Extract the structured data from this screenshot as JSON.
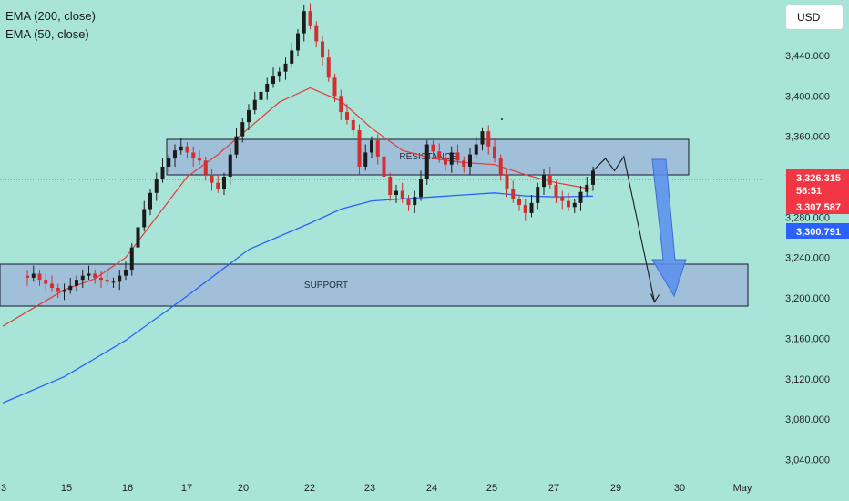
{
  "indicators": {
    "ema200_label": "EMA (200, close)",
    "ema50_label": "EMA (50, close)",
    "ema200_color": "#2962ff",
    "ema50_color": "#e53935"
  },
  "currency_label": "USD",
  "zones": {
    "resistance_label": "RESISTANCE",
    "support_label": "SUPPORT",
    "resistance_range": [
      3336,
      3366
    ],
    "support_range": [
      3199,
      3237
    ],
    "fill_color": "#9fb8d8"
  },
  "price_badges": {
    "last_price": "3,326.315",
    "countdown": "56:51",
    "ema50_value": "3,307.587",
    "ema200_value": "3,300.791"
  },
  "colors": {
    "background": "#a8e4d8",
    "up_candle": "#1b1b1b",
    "down_candle": "#d32f2f",
    "badge_red": "#f23645",
    "badge_blue": "#2962ff",
    "arrow_blue": "#5b8def"
  },
  "chart_data": {
    "type": "candlestick",
    "x_ticks": [
      "3",
      "15",
      "16",
      "17",
      "20",
      "22",
      "23",
      "24",
      "25",
      "27",
      "29",
      "30",
      "May"
    ],
    "y_ticks": [
      "3,440.000",
      "3,400.000",
      "3,360.000",
      "3,320.000",
      "3,280.000",
      "3,240.000",
      "3,200.000",
      "3,160.000",
      "3,120.000",
      "3,080.000",
      "3,040.000"
    ],
    "y_tick_values": [
      3440,
      3400,
      3360,
      3320,
      3280,
      3240,
      3200,
      3160,
      3120,
      3080,
      3040
    ],
    "ylim": [
      3026,
      3495
    ],
    "last_price": 3326.315,
    "close_path": [
      [
        3,
        3222
      ],
      [
        4,
        3220
      ],
      [
        5,
        3224
      ],
      [
        6,
        3218
      ],
      [
        7,
        3214
      ],
      [
        8,
        3210
      ],
      [
        9,
        3206
      ],
      [
        10,
        3208
      ],
      [
        11,
        3212
      ],
      [
        12,
        3218
      ],
      [
        13,
        3222
      ],
      [
        14,
        3224
      ],
      [
        15,
        3220
      ],
      [
        16,
        3218
      ],
      [
        17,
        3216
      ],
      [
        18,
        3216
      ],
      [
        19,
        3222
      ],
      [
        20,
        3228
      ],
      [
        21,
        3250
      ],
      [
        22,
        3270
      ],
      [
        23,
        3288
      ],
      [
        24,
        3304
      ],
      [
        25,
        3318
      ],
      [
        26,
        3330
      ],
      [
        27,
        3338
      ],
      [
        28,
        3346
      ],
      [
        29,
        3350
      ],
      [
        30,
        3344
      ],
      [
        31,
        3338
      ],
      [
        32,
        3336
      ],
      [
        33,
        3322
      ],
      [
        34,
        3314
      ],
      [
        35,
        3308
      ],
      [
        36,
        3320
      ],
      [
        37,
        3342
      ],
      [
        38,
        3360
      ],
      [
        39,
        3374
      ],
      [
        40,
        3386
      ],
      [
        41,
        3396
      ],
      [
        42,
        3404
      ],
      [
        43,
        3412
      ],
      [
        44,
        3420
      ],
      [
        45,
        3424
      ],
      [
        46,
        3432
      ],
      [
        47,
        3445
      ],
      [
        48,
        3462
      ],
      [
        49,
        3484
      ],
      [
        50,
        3470
      ],
      [
        51,
        3454
      ],
      [
        52,
        3438
      ],
      [
        53,
        3418
      ],
      [
        54,
        3400
      ],
      [
        55,
        3384
      ],
      [
        56,
        3376
      ],
      [
        57,
        3366
      ],
      [
        58,
        3330
      ],
      [
        59,
        3344
      ],
      [
        60,
        3356
      ],
      [
        61,
        3340
      ],
      [
        62,
        3320
      ],
      [
        63,
        3302
      ],
      [
        64,
        3306
      ],
      [
        65,
        3298
      ],
      [
        66,
        3292
      ],
      [
        67,
        3300
      ],
      [
        68,
        3318
      ],
      [
        69,
        3352
      ],
      [
        70,
        3345
      ],
      [
        71,
        3338
      ],
      [
        72,
        3332
      ],
      [
        73,
        3344
      ],
      [
        74,
        3336
      ],
      [
        75,
        3330
      ],
      [
        76,
        3342
      ],
      [
        77,
        3352
      ],
      [
        78,
        3365
      ],
      [
        79,
        3350
      ],
      [
        80,
        3338
      ],
      [
        81,
        3322
      ],
      [
        82,
        3308
      ],
      [
        83,
        3298
      ],
      [
        84,
        3292
      ],
      [
        85,
        3284
      ],
      [
        86,
        3294
      ],
      [
        87,
        3310
      ],
      [
        88,
        3322
      ],
      [
        89,
        3312
      ],
      [
        90,
        3300
      ],
      [
        91,
        3296
      ],
      [
        92,
        3290
      ],
      [
        93,
        3294
      ],
      [
        94,
        3305
      ],
      [
        95,
        3312
      ],
      [
        96,
        3326
      ]
    ],
    "ema50": [
      [
        0,
        3172
      ],
      [
        10,
        3208
      ],
      [
        15,
        3219
      ],
      [
        20,
        3240
      ],
      [
        25,
        3280
      ],
      [
        30,
        3320
      ],
      [
        35,
        3342
      ],
      [
        40,
        3368
      ],
      [
        45,
        3394
      ],
      [
        50,
        3408
      ],
      [
        55,
        3395
      ],
      [
        60,
        3368
      ],
      [
        65,
        3346
      ],
      [
        70,
        3338
      ],
      [
        75,
        3334
      ],
      [
        80,
        3332
      ],
      [
        85,
        3322
      ],
      [
        90,
        3314
      ],
      [
        96,
        3307.587
      ]
    ],
    "ema200": [
      [
        0,
        3096
      ],
      [
        10,
        3122
      ],
      [
        20,
        3158
      ],
      [
        30,
        3202
      ],
      [
        40,
        3248
      ],
      [
        50,
        3274
      ],
      [
        55,
        3288
      ],
      [
        60,
        3296
      ],
      [
        65,
        3298
      ],
      [
        70,
        3300
      ],
      [
        75,
        3302
      ],
      [
        80,
        3304
      ],
      [
        85,
        3301
      ],
      [
        90,
        3300
      ],
      [
        96,
        3300.791
      ]
    ],
    "projection": [
      [
        96,
        3326
      ],
      [
        98,
        3338
      ],
      [
        99.5,
        3326
      ],
      [
        101,
        3340
      ],
      [
        106,
        3196
      ]
    ]
  }
}
